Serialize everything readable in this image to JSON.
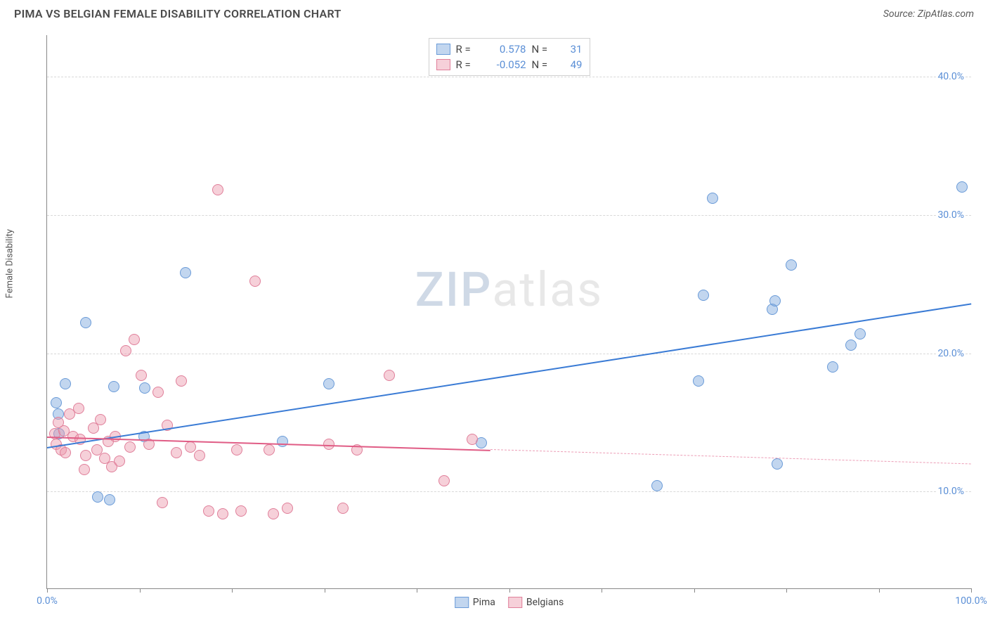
{
  "header": {
    "title": "PIMA VS BELGIAN FEMALE DISABILITY CORRELATION CHART",
    "source": "Source: ZipAtlas.com"
  },
  "chart": {
    "type": "scatter",
    "y_label": "Female Disability",
    "background_color": "#ffffff",
    "grid_color": "#d8d8d8",
    "axis_color": "#888888",
    "xlim": [
      0,
      100
    ],
    "ylim": [
      3,
      43
    ],
    "x_ticks": [
      0,
      10,
      20,
      30,
      40,
      50,
      60,
      70,
      80,
      90,
      100
    ],
    "x_tick_labels": {
      "0": "0.0%",
      "100": "100.0%"
    },
    "y_ticks": [
      10,
      20,
      30,
      40
    ],
    "y_tick_labels": {
      "10": "10.0%",
      "20": "20.0%",
      "30": "30.0%",
      "40": "40.0%"
    },
    "label_color": "#5b8fd6",
    "label_fontsize": 14,
    "watermark": {
      "part1": "ZIP",
      "part2": "atlas",
      "color1": "#cfd9e6",
      "color2": "#e8e8e8",
      "fontsize": 68
    },
    "series": [
      {
        "name": "Pima",
        "marker_color_fill": "rgba(120,165,220,0.45)",
        "marker_color_stroke": "#6a9bd8",
        "marker_size": 16,
        "trend": {
          "x0": 0,
          "y0": 13.2,
          "x1": 100,
          "y1": 23.6,
          "color": "#3a7bd5",
          "width": 2,
          "dash_after_x": null
        },
        "R": "0.578",
        "N": "31",
        "points": [
          {
            "x": 1.0,
            "y": 16.4
          },
          {
            "x": 1.2,
            "y": 15.6
          },
          {
            "x": 1.3,
            "y": 14.2
          },
          {
            "x": 2.0,
            "y": 17.8
          },
          {
            "x": 4.2,
            "y": 22.2
          },
          {
            "x": 5.5,
            "y": 9.6
          },
          {
            "x": 6.8,
            "y": 9.4
          },
          {
            "x": 7.2,
            "y": 17.6
          },
          {
            "x": 10.6,
            "y": 17.5
          },
          {
            "x": 10.5,
            "y": 14.0
          },
          {
            "x": 15.0,
            "y": 25.8
          },
          {
            "x": 25.5,
            "y": 13.6
          },
          {
            "x": 30.5,
            "y": 17.8
          },
          {
            "x": 47.0,
            "y": 13.5
          },
          {
            "x": 66.0,
            "y": 10.4
          },
          {
            "x": 70.5,
            "y": 18.0
          },
          {
            "x": 71.0,
            "y": 24.2
          },
          {
            "x": 72.0,
            "y": 31.2
          },
          {
            "x": 78.5,
            "y": 23.2
          },
          {
            "x": 78.8,
            "y": 23.8
          },
          {
            "x": 79.0,
            "y": 12.0
          },
          {
            "x": 80.5,
            "y": 26.4
          },
          {
            "x": 85.0,
            "y": 19.0
          },
          {
            "x": 87.0,
            "y": 20.6
          },
          {
            "x": 88.0,
            "y": 21.4
          },
          {
            "x": 99.0,
            "y": 32.0
          }
        ]
      },
      {
        "name": "Belgians",
        "marker_color_fill": "rgba(235,150,170,0.45)",
        "marker_color_stroke": "#e07f9a",
        "marker_size": 16,
        "trend": {
          "x0": 0,
          "y0": 14.0,
          "x1": 100,
          "y1": 12.0,
          "color": "#e05c85",
          "width": 2,
          "dash_after_x": 48
        },
        "R": "-0.052",
        "N": "49",
        "points": [
          {
            "x": 0.8,
            "y": 14.2
          },
          {
            "x": 1.0,
            "y": 13.4
          },
          {
            "x": 1.2,
            "y": 15.0
          },
          {
            "x": 1.5,
            "y": 13.0
          },
          {
            "x": 1.8,
            "y": 14.4
          },
          {
            "x": 2.0,
            "y": 12.8
          },
          {
            "x": 2.4,
            "y": 15.6
          },
          {
            "x": 2.8,
            "y": 14.0
          },
          {
            "x": 3.4,
            "y": 16.0
          },
          {
            "x": 3.6,
            "y": 13.8
          },
          {
            "x": 4.0,
            "y": 11.6
          },
          {
            "x": 4.2,
            "y": 12.6
          },
          {
            "x": 5.0,
            "y": 14.6
          },
          {
            "x": 5.4,
            "y": 13.0
          },
          {
            "x": 5.8,
            "y": 15.2
          },
          {
            "x": 6.2,
            "y": 12.4
          },
          {
            "x": 6.6,
            "y": 13.6
          },
          {
            "x": 7.0,
            "y": 11.8
          },
          {
            "x": 7.4,
            "y": 14.0
          },
          {
            "x": 7.8,
            "y": 12.2
          },
          {
            "x": 8.5,
            "y": 20.2
          },
          {
            "x": 9.0,
            "y": 13.2
          },
          {
            "x": 9.4,
            "y": 21.0
          },
          {
            "x": 10.2,
            "y": 18.4
          },
          {
            "x": 11.0,
            "y": 13.4
          },
          {
            "x": 12.0,
            "y": 17.2
          },
          {
            "x": 12.5,
            "y": 9.2
          },
          {
            "x": 13.0,
            "y": 14.8
          },
          {
            "x": 14.0,
            "y": 12.8
          },
          {
            "x": 14.5,
            "y": 18.0
          },
          {
            "x": 15.5,
            "y": 13.2
          },
          {
            "x": 16.5,
            "y": 12.6
          },
          {
            "x": 17.5,
            "y": 8.6
          },
          {
            "x": 18.5,
            "y": 31.8
          },
          {
            "x": 19.0,
            "y": 8.4
          },
          {
            "x": 20.5,
            "y": 13.0
          },
          {
            "x": 21.0,
            "y": 8.6
          },
          {
            "x": 22.5,
            "y": 25.2
          },
          {
            "x": 24.0,
            "y": 13.0
          },
          {
            "x": 24.5,
            "y": 8.4
          },
          {
            "x": 26.0,
            "y": 8.8
          },
          {
            "x": 30.5,
            "y": 13.4
          },
          {
            "x": 32.0,
            "y": 8.8
          },
          {
            "x": 33.5,
            "y": 13.0
          },
          {
            "x": 37.0,
            "y": 18.4
          },
          {
            "x": 43.0,
            "y": 10.8
          },
          {
            "x": 46.0,
            "y": 13.8
          }
        ]
      }
    ],
    "legend_top": {
      "border_color": "#d0d0d0",
      "rows": [
        {
          "swatch_fill": "rgba(120,165,220,0.45)",
          "swatch_stroke": "#6a9bd8",
          "r_label": "R =",
          "r_val": "0.578",
          "n_label": "N =",
          "n_val": "31"
        },
        {
          "swatch_fill": "rgba(235,150,170,0.45)",
          "swatch_stroke": "#e07f9a",
          "r_label": "R =",
          "r_val": "-0.052",
          "n_label": "N =",
          "n_val": "49"
        }
      ]
    },
    "legend_bottom": {
      "items": [
        {
          "swatch_fill": "rgba(120,165,220,0.45)",
          "swatch_stroke": "#6a9bd8",
          "label": "Pima"
        },
        {
          "swatch_fill": "rgba(235,150,170,0.45)",
          "swatch_stroke": "#e07f9a",
          "label": "Belgians"
        }
      ]
    }
  }
}
